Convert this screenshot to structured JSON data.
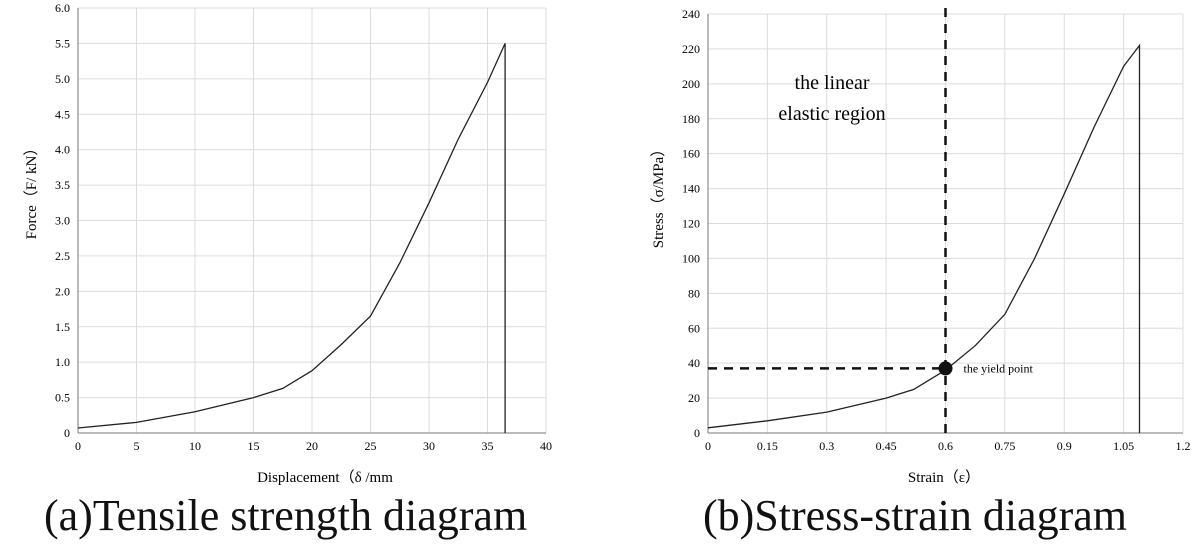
{
  "chart_data": [
    {
      "type": "line",
      "xlabel": "Displacement（δ /mm",
      "ylabel": "Force（F/ kN）",
      "xlim": [
        0,
        40
      ],
      "ylim": [
        0,
        6.0
      ],
      "xticks": [
        "0",
        "5",
        "10",
        "15",
        "20",
        "25",
        "30",
        "35",
        "40"
      ],
      "yticks": [
        "0",
        "0.5",
        "1.0",
        "1.5",
        "2.0",
        "2.5",
        "3.0",
        "3.5",
        "4.0",
        "4.5",
        "5.0",
        "5.5",
        "6.0"
      ],
      "grid": true,
      "series": [
        {
          "x": [
            0,
            5,
            10,
            15,
            17.5,
            20,
            22.5,
            25,
            27.5,
            30,
            32.5,
            35,
            36.5,
            36.5
          ],
          "y": [
            0.07,
            0.15,
            0.3,
            0.5,
            0.63,
            0.88,
            1.25,
            1.65,
            2.4,
            3.25,
            4.15,
            4.95,
            5.5,
            0
          ],
          "color": "#222222"
        }
      ]
    },
    {
      "type": "line",
      "xlabel": "Strain（ε）",
      "ylabel": "Stress（σ/MPa）",
      "xlim": [
        0,
        1.2
      ],
      "ylim": [
        0,
        240
      ],
      "xticks": [
        "0",
        "0.15",
        "0.3",
        "0.45",
        "0.6",
        "0.75",
        "0.9",
        "1.05",
        "1.2"
      ],
      "yticks": [
        "0",
        "20",
        "40",
        "60",
        "80",
        "100",
        "120",
        "140",
        "160",
        "180",
        "200",
        "220",
        "240"
      ],
      "grid": true,
      "series": [
        {
          "x": [
            0,
            0.15,
            0.3,
            0.45,
            0.52,
            0.6,
            0.675,
            0.75,
            0.825,
            0.9,
            0.975,
            1.05,
            1.09,
            1.09
          ],
          "y": [
            3,
            7,
            12,
            20,
            25,
            36,
            50,
            68,
            100,
            137,
            175,
            210,
            222,
            0
          ],
          "color": "#222222"
        }
      ],
      "annotations": {
        "region_text_1": "the linear",
        "region_text_2": "elastic region",
        "yield_label": "the yield point",
        "yield_point": [
          0.6,
          37
        ],
        "vline_x": 0.6,
        "hline_y": 37
      }
    }
  ],
  "captions": {
    "a": "(a)Tensile strength diagram",
    "b": "(b)Stress-strain diagram"
  }
}
